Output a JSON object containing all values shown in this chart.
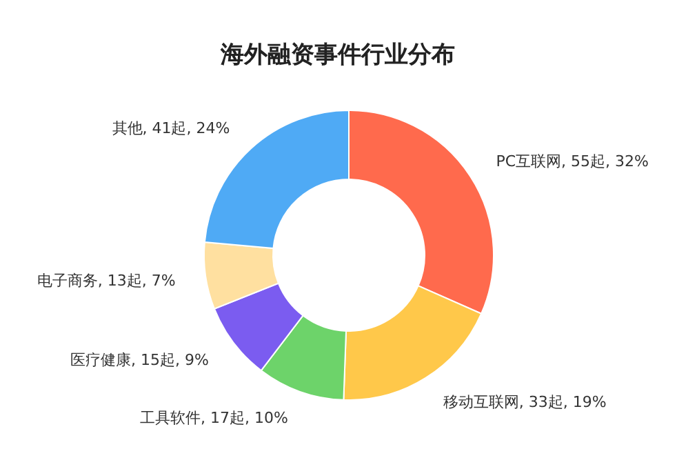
{
  "chart_data": {
    "type": "donut",
    "title": "海外融资事件行业分布",
    "categories": [
      "PC互联网",
      "移动互联网",
      "工具软件",
      "医疗健康",
      "电子商务",
      "其他"
    ],
    "values": [
      55,
      33,
      17,
      15,
      13,
      41
    ],
    "colors": [
      "#ff6a4d",
      "#ffc84a",
      "#6dd36a",
      "#7b5cf0",
      "#ffe0a0",
      "#4faaf5"
    ],
    "value_labels": [
      "55起, 32%",
      "33起, 19%",
      "17起, 10%",
      "15起, 9%",
      "13起, 7%",
      "41起, 24%"
    ]
  }
}
